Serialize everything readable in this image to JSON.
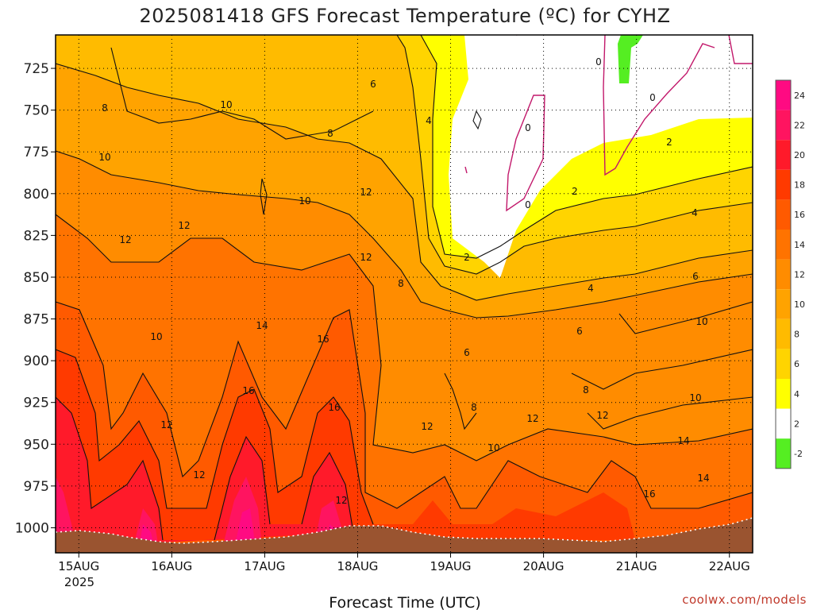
{
  "chart_data": {
    "type": "heatmap",
    "title": "2025081418 GFS Forecast Temperature (ºC) for CYHZ",
    "xlabel": "Forecast Time (UTC)",
    "x_ticks": [
      "15AUG",
      "16AUG",
      "17AUG",
      "18AUG",
      "19AUG",
      "20AUG",
      "21AUG",
      "22AUG"
    ],
    "x_subtitle": "2025",
    "xlim_days": [
      14.75,
      22.25
    ],
    "ylabel_ticks": [
      725,
      750,
      775,
      800,
      825,
      850,
      875,
      900,
      925,
      950,
      975,
      1000
    ],
    "ylim": [
      705,
      1015
    ],
    "colorbar": {
      "ticks": [
        24,
        22,
        20,
        18,
        16,
        14,
        12,
        10,
        8,
        6,
        4,
        2,
        -2
      ],
      "colors": [
        "#ff0a82",
        "#ff1460",
        "#ff1a2a",
        "#ff3a00",
        "#ff5a00",
        "#ff7300",
        "#ff8c00",
        "#ffa300",
        "#ffbb00",
        "#ffd400",
        "#ffff00",
        "#ffffff",
        "#55ee22"
      ]
    },
    "contour_labels": [
      "8",
      "10",
      "12",
      "10",
      "12",
      "6",
      "4",
      "8",
      "10",
      "12",
      "12",
      "14",
      "16",
      "16",
      "12",
      "12",
      "16",
      "10",
      "12",
      "8",
      "12",
      "6",
      "8",
      "10",
      "2",
      "0",
      "0",
      "0",
      "0",
      "2",
      "2",
      "4",
      "4",
      "6",
      "6",
      "8",
      "10",
      "10",
      "12",
      "12",
      "14",
      "14",
      "16"
    ],
    "grid": true,
    "ground_color": "#9a5430"
  },
  "credit": "coolwx.com/models"
}
